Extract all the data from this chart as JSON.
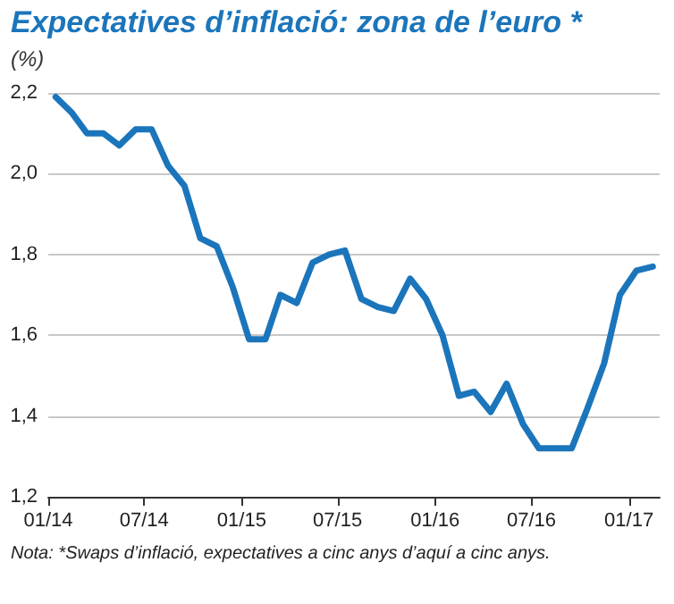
{
  "chart_data": {
    "type": "line",
    "title": "Expectatives d’inflació: zona de l’euro *",
    "ylabel": "(%)",
    "annotations": [
      "Nota: *Swaps d’inflació, expectatives a cinc anys d’aquí a cinc anys."
    ],
    "x": [
      "2014-01-15",
      "2014-02-15",
      "2014-03-15",
      "2014-04-15",
      "2014-05-15",
      "2014-06-15",
      "2014-07-15",
      "2014-08-15",
      "2014-09-15",
      "2014-10-15",
      "2014-11-15",
      "2014-12-15",
      "2015-01-15",
      "2015-02-15",
      "2015-03-15",
      "2015-04-15",
      "2015-05-15",
      "2015-06-15",
      "2015-07-15",
      "2015-08-15",
      "2015-09-15",
      "2015-10-15",
      "2015-11-15",
      "2015-12-15",
      "2016-01-15",
      "2016-02-15",
      "2016-03-15",
      "2016-04-15",
      "2016-05-15",
      "2016-06-15",
      "2016-07-15",
      "2016-08-15",
      "2016-09-15",
      "2016-10-15",
      "2016-11-15",
      "2016-12-15",
      "2017-01-15",
      "2017-02-15"
    ],
    "series": [
      {
        "color": "#1b75bb",
        "values": [
          2.19,
          2.15,
          2.1,
          2.1,
          2.07,
          2.11,
          2.11,
          2.02,
          1.97,
          1.84,
          1.82,
          1.72,
          1.59,
          1.59,
          1.7,
          1.68,
          1.78,
          1.8,
          1.81,
          1.69,
          1.67,
          1.66,
          1.74,
          1.69,
          1.6,
          1.45,
          1.46,
          1.41,
          1.48,
          1.38,
          1.32,
          1.32,
          1.32,
          1.42,
          1.53,
          1.7,
          1.76,
          1.77
        ]
      }
    ],
    "xlim": [
      "2014-01-01",
      "2017-02-28"
    ],
    "xticks": [
      {
        "value": "2014-01-01",
        "label": "01/14"
      },
      {
        "value": "2014-07-01",
        "label": "07/14"
      },
      {
        "value": "2015-01-01",
        "label": "01/15"
      },
      {
        "value": "2015-07-01",
        "label": "07/15"
      },
      {
        "value": "2016-01-01",
        "label": "01/16"
      },
      {
        "value": "2016-07-01",
        "label": "07/16"
      },
      {
        "value": "2017-01-01",
        "label": "01/17"
      }
    ],
    "ylim": [
      1.2,
      2.2
    ],
    "yticks": [
      {
        "value": 1.2,
        "label": "1,2"
      },
      {
        "value": 1.4,
        "label": "1,4"
      },
      {
        "value": 1.6,
        "label": "1,6"
      },
      {
        "value": 1.8,
        "label": "1,8"
      },
      {
        "value": 2.0,
        "label": "2,0"
      },
      {
        "value": 2.2,
        "label": "2,2"
      }
    ],
    "grid": "y",
    "marker": "none",
    "line_style": "solid"
  }
}
